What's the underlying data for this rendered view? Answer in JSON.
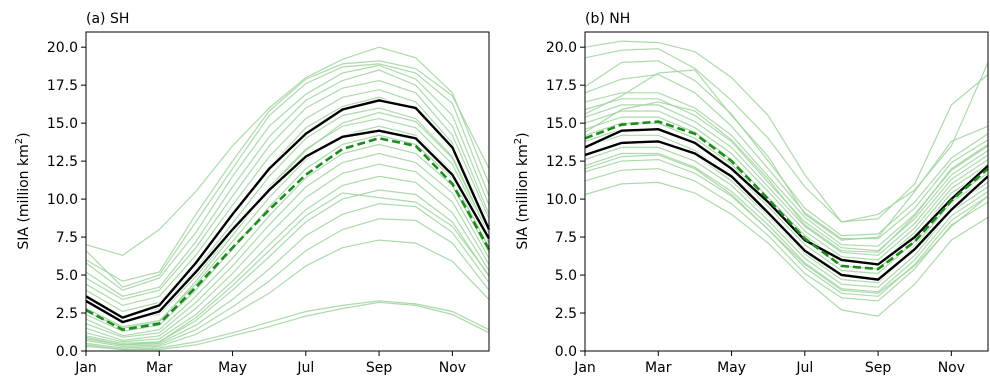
{
  "colors": {
    "member_line": "#9fd39f",
    "obs_line": "#000000",
    "mean_line": "#1f8a1f"
  },
  "chart_data": [
    {
      "type": "line",
      "title": "(a) SH",
      "xlabel": "",
      "ylabel": "SIA (million km",
      "ylabel_sup": "2",
      "ylabel_end": ")",
      "x_ticks": [
        "Jan",
        "Mar",
        "May",
        "Jul",
        "Sep",
        "Nov"
      ],
      "x": [
        "Jan",
        "Feb",
        "Mar",
        "Apr",
        "May",
        "Jun",
        "Jul",
        "Aug",
        "Sep",
        "Oct",
        "Nov",
        "Dec"
      ],
      "ylim": [
        0,
        21
      ],
      "y_ticks": [
        "0.0",
        "2.5",
        "5.0",
        "7.5",
        "10.0",
        "12.5",
        "15.0",
        "17.5",
        "20.0"
      ],
      "grid": false,
      "obs_series": [
        [
          3.6,
          2.2,
          3.0,
          5.8,
          9.0,
          12.0,
          14.3,
          15.9,
          16.5,
          16.0,
          13.4,
          8.0
        ],
        [
          3.3,
          1.9,
          2.6,
          5.2,
          8.0,
          10.6,
          12.8,
          14.1,
          14.5,
          14.0,
          11.6,
          7.4
        ]
      ],
      "mean_series": [
        2.7,
        1.4,
        1.8,
        4.2,
        6.8,
        9.3,
        11.6,
        13.3,
        14.0,
        13.5,
        11.0,
        6.7
      ],
      "member_series": [
        [
          7.0,
          6.3,
          8.0,
          10.5,
          13.5,
          16.0,
          18.0,
          19.2,
          20.0,
          19.3,
          17.0,
          11.0
        ],
        [
          6.6,
          4.2,
          5.0,
          8.5,
          12.0,
          15.5,
          17.6,
          18.7,
          18.9,
          18.3,
          16.3,
          10.2
        ],
        [
          5.8,
          4.0,
          4.8,
          7.8,
          11.5,
          14.8,
          16.9,
          18.3,
          18.8,
          17.9,
          15.5,
          9.6
        ],
        [
          5.2,
          3.6,
          4.2,
          7.2,
          10.8,
          14.1,
          16.5,
          17.8,
          18.5,
          17.5,
          14.8,
          9.0
        ],
        [
          4.8,
          3.4,
          4.0,
          6.8,
          10.2,
          13.5,
          16.0,
          17.3,
          17.8,
          17.0,
          14.2,
          8.7
        ],
        [
          4.4,
          3.0,
          3.6,
          6.3,
          9.6,
          12.8,
          15.3,
          16.7,
          17.2,
          16.4,
          13.7,
          8.3
        ],
        [
          4.0,
          2.6,
          3.2,
          5.9,
          9.0,
          12.1,
          14.7,
          16.1,
          16.7,
          15.9,
          13.2,
          8.0
        ],
        [
          3.6,
          2.3,
          2.8,
          5.4,
          8.4,
          11.5,
          14.0,
          15.5,
          16.0,
          15.3,
          12.8,
          7.7
        ],
        [
          3.2,
          2.0,
          2.4,
          4.9,
          7.8,
          10.8,
          13.3,
          14.8,
          15.3,
          14.7,
          12.3,
          7.4
        ],
        [
          2.8,
          1.6,
          2.0,
          4.4,
          7.2,
          10.1,
          12.6,
          14.2,
          14.8,
          14.2,
          11.8,
          7.1
        ],
        [
          2.4,
          1.3,
          1.7,
          4.0,
          6.7,
          9.5,
          12.0,
          13.6,
          14.2,
          13.6,
          11.4,
          6.8
        ],
        [
          2.1,
          1.0,
          1.4,
          3.6,
          6.1,
          8.9,
          11.4,
          13.0,
          13.6,
          13.0,
          10.9,
          6.5
        ],
        [
          1.8,
          0.9,
          1.2,
          3.2,
          5.6,
          8.3,
          10.8,
          12.4,
          13.0,
          12.4,
          10.4,
          6.1
        ],
        [
          1.5,
          0.7,
          1.0,
          2.8,
          5.1,
          7.7,
          10.1,
          11.7,
          12.3,
          11.8,
          9.8,
          5.7
        ],
        [
          1.2,
          0.6,
          0.8,
          2.4,
          4.6,
          7.0,
          9.3,
          10.9,
          11.5,
          11.1,
          9.1,
          5.3
        ],
        [
          1.0,
          0.5,
          0.6,
          2.0,
          4.0,
          6.2,
          8.5,
          10.0,
          10.6,
          10.3,
          8.5,
          4.9
        ],
        [
          0.8,
          0.4,
          0.5,
          1.7,
          3.4,
          5.4,
          7.6,
          9.0,
          9.7,
          9.5,
          7.8,
          4.5
        ],
        [
          0.7,
          0.3,
          0.4,
          1.4,
          2.9,
          4.6,
          6.6,
          8.0,
          8.7,
          8.6,
          7.1,
          4.0
        ],
        [
          0.5,
          0.2,
          0.3,
          1.1,
          2.4,
          3.8,
          5.6,
          6.8,
          7.3,
          7.1,
          5.9,
          3.4
        ],
        [
          0.4,
          0.1,
          0.2,
          0.6,
          1.2,
          1.9,
          2.6,
          3.0,
          3.3,
          3.1,
          2.6,
          1.4
        ],
        [
          0.3,
          0.1,
          0.1,
          0.4,
          1.0,
          1.6,
          2.3,
          2.8,
          3.2,
          3.0,
          2.4,
          1.2
        ],
        [
          6.0,
          4.6,
          5.2,
          9.0,
          12.5,
          15.8,
          17.9,
          18.9,
          19.1,
          18.6,
          16.8,
          12.0
        ],
        [
          2.6,
          1.5,
          1.9,
          4.6,
          7.6,
          10.7,
          13.2,
          15.0,
          15.7,
          15.1,
          12.7,
          7.6
        ],
        [
          0.9,
          0.4,
          0.6,
          2.2,
          4.3,
          6.6,
          8.9,
          10.4,
          10.1,
          9.8,
          8.2,
          5.0
        ]
      ]
    },
    {
      "type": "line",
      "title": "(b) NH",
      "xlabel": "",
      "ylabel": "SIA (million km",
      "ylabel_sup": "2",
      "ylabel_end": ")",
      "x_ticks": [
        "Jan",
        "Mar",
        "May",
        "Jul",
        "Sep",
        "Nov"
      ],
      "x": [
        "Jan",
        "Feb",
        "Mar",
        "Apr",
        "May",
        "Jun",
        "Jul",
        "Aug",
        "Sep",
        "Oct",
        "Nov",
        "Dec"
      ],
      "ylim": [
        0,
        21
      ],
      "y_ticks": [
        "0.0",
        "2.5",
        "5.0",
        "7.5",
        "10.0",
        "12.5",
        "15.0",
        "17.5",
        "20.0"
      ],
      "grid": false,
      "obs_series": [
        [
          13.4,
          14.5,
          14.6,
          13.7,
          12.0,
          9.8,
          7.3,
          6.0,
          5.7,
          7.5,
          10.0,
          12.2
        ],
        [
          12.9,
          13.7,
          13.8,
          13.0,
          11.5,
          9.1,
          6.6,
          5.0,
          4.7,
          6.7,
          9.3,
          11.5
        ]
      ],
      "mean_series": [
        14.0,
        14.9,
        15.1,
        14.3,
        12.5,
        10.0,
        7.4,
        5.6,
        5.4,
        7.2,
        9.9,
        12.0
      ],
      "member_series": [
        [
          20.0,
          20.4,
          20.3,
          19.7,
          18.0,
          15.5,
          11.6,
          8.5,
          9.0,
          10.6,
          13.5,
          19.0
        ],
        [
          19.3,
          19.8,
          19.9,
          18.6,
          16.5,
          14.0,
          10.8,
          8.5,
          8.7,
          11.0,
          16.2,
          18.2
        ],
        [
          17.4,
          19.0,
          19.1,
          17.8,
          15.6,
          12.5,
          9.4,
          7.6,
          7.7,
          9.8,
          12.7,
          14.3
        ],
        [
          17.0,
          17.9,
          18.2,
          17.0,
          14.8,
          12.0,
          9.1,
          7.4,
          7.4,
          9.4,
          12.4,
          13.9
        ],
        [
          16.4,
          17.0,
          17.0,
          16.0,
          14.2,
          11.5,
          8.8,
          7.0,
          6.9,
          9.0,
          11.9,
          13.5
        ],
        [
          15.9,
          16.6,
          16.6,
          15.5,
          13.8,
          11.1,
          8.5,
          6.8,
          6.6,
          8.7,
          11.6,
          13.2
        ],
        [
          15.4,
          16.2,
          16.2,
          15.1,
          13.4,
          10.8,
          8.2,
          6.5,
          6.3,
          8.4,
          11.3,
          12.9
        ],
        [
          15.0,
          15.8,
          15.8,
          14.7,
          13.0,
          10.5,
          7.9,
          6.2,
          6.0,
          8.1,
          11.0,
          12.6
        ],
        [
          14.6,
          15.4,
          15.4,
          14.4,
          12.6,
          10.1,
          7.6,
          5.9,
          5.7,
          7.8,
          10.7,
          12.3
        ],
        [
          14.2,
          15.0,
          15.0,
          14.0,
          12.3,
          9.8,
          7.3,
          5.6,
          5.4,
          7.5,
          10.4,
          12.0
        ],
        [
          13.8,
          14.6,
          14.6,
          13.6,
          11.9,
          9.5,
          7.0,
          5.3,
          5.1,
          7.2,
          10.1,
          11.7
        ],
        [
          13.4,
          14.2,
          14.2,
          13.2,
          11.5,
          9.2,
          6.7,
          5.0,
          4.8,
          6.9,
          9.8,
          11.4
        ],
        [
          13.0,
          13.8,
          13.8,
          12.9,
          11.2,
          8.9,
          6.4,
          4.7,
          4.5,
          6.6,
          9.5,
          11.1
        ],
        [
          12.6,
          13.4,
          13.4,
          12.5,
          10.9,
          8.6,
          6.1,
          4.4,
          4.2,
          6.3,
          9.2,
          10.8
        ],
        [
          12.2,
          13.0,
          13.0,
          12.1,
          10.5,
          8.3,
          5.8,
          4.1,
          3.9,
          6.0,
          8.9,
          10.5
        ],
        [
          11.8,
          12.5,
          12.6,
          11.7,
          10.2,
          8.0,
          5.5,
          3.8,
          3.6,
          5.7,
          8.6,
          10.2
        ],
        [
          11.2,
          11.9,
          12.0,
          11.2,
          9.7,
          7.6,
          5.1,
          3.5,
          3.3,
          5.4,
          8.3,
          9.8
        ],
        [
          10.3,
          11.0,
          11.1,
          10.4,
          9.0,
          7.1,
          4.7,
          2.7,
          2.3,
          4.4,
          7.3,
          8.8
        ],
        [
          15.6,
          16.8,
          18.3,
          18.5,
          15.5,
          12.8,
          9.0,
          7.3,
          7.5,
          10.5,
          13.8,
          14.8
        ],
        [
          14.4,
          15.9,
          16.4,
          15.8,
          13.9,
          11.3,
          8.3,
          6.6,
          6.5,
          8.9,
          12.0,
          13.6
        ],
        [
          12.0,
          12.8,
          12.9,
          12.0,
          10.3,
          8.0,
          5.7,
          4.0,
          3.8,
          5.6,
          8.2,
          10.2
        ]
      ]
    }
  ]
}
